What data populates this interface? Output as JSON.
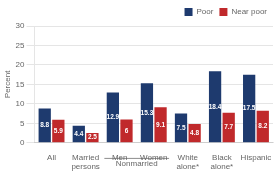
{
  "chart_data": {
    "type": "bar",
    "categories": [
      "All",
      "Married\npersons",
      "Men",
      "Women",
      "White\nalone*",
      "Black\nalone*",
      "Hispanic"
    ],
    "series": [
      {
        "name": "Poor",
        "color": "#1e3a6e",
        "values": [
          8.8,
          4.4,
          12.9,
          15.3,
          7.5,
          18.4,
          17.5
        ]
      },
      {
        "name": "Near poor",
        "color": "#c0292b",
        "values": [
          5.9,
          2.5,
          6.0,
          9.1,
          4.8,
          7.7,
          8.2
        ]
      }
    ],
    "ylabel": "Percent",
    "ylim": [
      0,
      30
    ],
    "yticks": [
      0,
      5,
      10,
      15,
      20,
      25,
      30
    ],
    "grid": true,
    "legend": "upper right",
    "data_labels": true,
    "annotations": [
      {
        "text": "Nonmarried",
        "categories": [
          "Men",
          "Women"
        ]
      }
    ]
  }
}
